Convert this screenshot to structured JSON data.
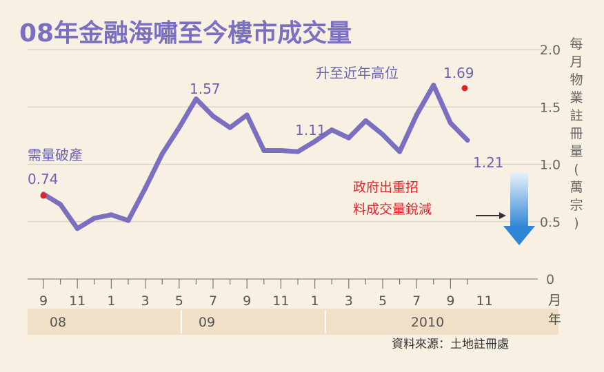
{
  "chart_data": {
    "type": "line",
    "title": "08年金融海嘯至今樓市成交量",
    "ylabel_chars": [
      "每",
      "月",
      "物",
      "業",
      "註",
      "冊",
      "量",
      "(",
      "萬",
      "宗",
      ")"
    ],
    "ylim": [
      0,
      2.0
    ],
    "yticks": [
      "0",
      "0.5",
      "1.0",
      "1.5",
      "2.0"
    ],
    "ytick_values": [
      0,
      0.5,
      1.0,
      1.5,
      2.0
    ],
    "x_month_labels": [
      "9",
      "11",
      "1",
      "3",
      "5",
      "7",
      "9",
      "11",
      "1",
      "3",
      "5",
      "7",
      "9",
      "11"
    ],
    "x_month_unit": [
      "月",
      "年"
    ],
    "x_year_labels": [
      "08",
      "09",
      "2010"
    ],
    "series": [
      {
        "values": [
          0.74,
          0.65,
          0.44,
          0.53,
          0.56,
          0.51,
          0.79,
          1.09,
          1.32,
          1.57,
          1.42,
          1.32,
          1.43,
          1.12,
          1.12,
          1.11,
          1.2,
          1.3,
          1.23,
          1.38,
          1.26,
          1.11,
          1.43,
          1.69,
          1.36,
          1.21
        ]
      }
    ],
    "annotations": {
      "low_label": "需量破產",
      "low_value": "0.74",
      "peak09_value": "1.57",
      "mid_value": "1.11",
      "high_label": "升至近年高位",
      "high_value": "1.69",
      "end_value": "1.21",
      "gov_line1": "政府出重招",
      "gov_line2": "料成交量銳減"
    },
    "source": "資料來源：土地註冊處"
  },
  "colors": {
    "background": "#f8f1e3",
    "line": "#7b6fc0",
    "title": "#7b6fc0",
    "highlight": "#e0242c",
    "arrow": "#3a8fd8",
    "year_band": "#f0e0c8"
  }
}
